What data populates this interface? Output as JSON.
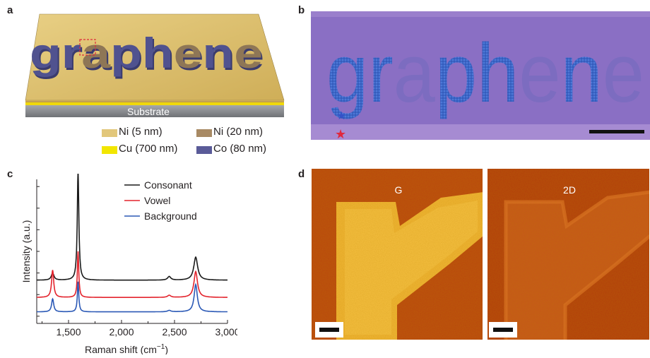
{
  "panels": {
    "a": {
      "label": "a",
      "word": "graphene",
      "substrate_label": "Substrate",
      "legend": [
        {
          "label": "Ni (5 nm)",
          "color": "#e2c77b"
        },
        {
          "label": "Ni (20 nm)",
          "color": "#a88a64"
        },
        {
          "label": "Cu (700 nm)",
          "color": "#f2e600"
        },
        {
          "label": "Co (80 nm)",
          "color": "#5a5b98"
        }
      ],
      "colors": {
        "ni5": "#dcbd68",
        "cu": "#f0d80a",
        "co": "#4a4c8f",
        "ni20": "#8c7558",
        "substrate": "#8e9094"
      }
    },
    "b": {
      "label": "b",
      "word_letters": [
        "g",
        "r",
        "a",
        "p",
        "h",
        "e",
        "n",
        "e"
      ],
      "colors": {
        "background": "#8a6fc4",
        "consonant": "#3c66c8",
        "vowel": "#7c6cc0",
        "star_blue": "#3452c8",
        "star_red": "#e0283c"
      }
    },
    "c": {
      "label": "c",
      "chart_data": {
        "type": "line",
        "xlabel": "Raman shift (cm",
        "xlabel_sup": "−1",
        "xlabel_close": ")",
        "ylabel": "Intensity (a.u.)",
        "xlim": [
          1200,
          3000
        ],
        "ylim": [
          0,
          10
        ],
        "xticks": [
          1500,
          2000,
          2500,
          3000
        ],
        "xtick_labels": [
          "1,500",
          "2,000",
          "2,500",
          "3,000"
        ],
        "series": [
          {
            "name": "Consonant",
            "color": "#1a1a1a",
            "baseline": 3.0,
            "peaks": [
              [
                1350,
                0.5,
                15
              ],
              [
                1590,
                7.6,
                9
              ],
              [
                2450,
                0.25,
                18
              ],
              [
                2700,
                1.6,
                22
              ]
            ]
          },
          {
            "name": "Vowel",
            "color": "#e3232c",
            "baseline": 1.8,
            "peaks": [
              [
                1350,
                1.9,
                12
              ],
              [
                1590,
                3.2,
                8
              ],
              [
                2450,
                0.15,
                18
              ],
              [
                2700,
                1.8,
                20
              ]
            ]
          },
          {
            "name": "Background",
            "color": "#2b59b6",
            "baseline": 0.8,
            "peaks": [
              [
                1350,
                0.9,
                12
              ],
              [
                1590,
                2.1,
                8
              ],
              [
                2450,
                0.1,
                18
              ],
              [
                2700,
                1.9,
                18
              ]
            ]
          }
        ],
        "legend_position": "top-right"
      }
    },
    "d": {
      "label": "d",
      "maps": [
        {
          "label": "G"
        },
        {
          "label": "2D"
        }
      ]
    }
  }
}
